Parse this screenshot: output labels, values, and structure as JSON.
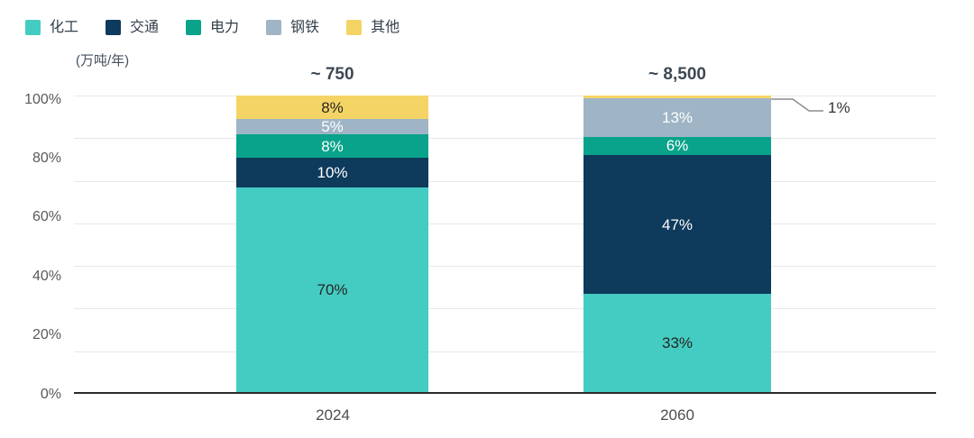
{
  "legend": {
    "items": [
      {
        "key": "chemical",
        "label": "化工",
        "color": "#44CCC2"
      },
      {
        "key": "transport",
        "label": "交通",
        "color": "#0E3A5B"
      },
      {
        "key": "power",
        "label": "电力",
        "color": "#09A38B"
      },
      {
        "key": "steel",
        "label": "钢铁",
        "color": "#9FB5C5"
      },
      {
        "key": "other",
        "label": "其他",
        "color": "#F4D464"
      }
    ]
  },
  "y_axis": {
    "unit_label": "(万吨/年)",
    "ticks": [
      {
        "label": "100%",
        "value": 100
      },
      {
        "label": "80%",
        "value": 80
      },
      {
        "label": "60%",
        "value": 60
      },
      {
        "label": "40%",
        "value": 40
      },
      {
        "label": "20%",
        "value": 20
      },
      {
        "label": "0%",
        "value": 0
      }
    ]
  },
  "x_axis": {
    "categories": [
      "2024",
      "2060"
    ]
  },
  "callout": {
    "label": "1%"
  },
  "bars": [
    {
      "category": "2024",
      "total_label": "~ 750",
      "segments": [
        {
          "key": "chemical",
          "label": "70%",
          "value": 70,
          "color": "#44CCC2",
          "text_color": "#262626"
        },
        {
          "key": "transport",
          "label": "10%",
          "value": 10,
          "color": "#0E3A5B",
          "text_color": "#FFFFFF"
        },
        {
          "key": "power",
          "label": "8%",
          "value": 8,
          "color": "#09A38B",
          "text_color": "#FFFFFF"
        },
        {
          "key": "steel",
          "label": "5%",
          "value": 5,
          "color": "#9FB5C5",
          "text_color": "#FFFFFF"
        },
        {
          "key": "other",
          "label": "8%",
          "value": 8,
          "color": "#F4D464",
          "text_color": "#262626"
        }
      ]
    },
    {
      "category": "2060",
      "total_label": "~ 8,500",
      "segments": [
        {
          "key": "chemical",
          "label": "33%",
          "value": 33,
          "color": "#44CCC2",
          "text_color": "#262626"
        },
        {
          "key": "transport",
          "label": "47%",
          "value": 47,
          "color": "#0E3A5B",
          "text_color": "#FFFFFF"
        },
        {
          "key": "power",
          "label": "6%",
          "value": 6,
          "color": "#09A38B",
          "text_color": "#FFFFFF"
        },
        {
          "key": "steel",
          "label": "13%",
          "value": 13,
          "color": "#9FB5C5",
          "text_color": "#FFFFFF"
        },
        {
          "key": "other",
          "label": "",
          "value": 1,
          "color": "#F4D464",
          "text_color": "#262626"
        }
      ]
    }
  ],
  "chart_data": {
    "type": "bar",
    "subtype": "stacked_100_percent",
    "categories": [
      "2024",
      "2060"
    ],
    "category_total_annotations": [
      "~ 750",
      "~ 8,500"
    ],
    "series": [
      {
        "name": "化工",
        "values": [
          70,
          33
        ],
        "color": "#44CCC2"
      },
      {
        "name": "交通",
        "values": [
          10,
          47
        ],
        "color": "#0E3A5B"
      },
      {
        "name": "电力",
        "values": [
          8,
          6
        ],
        "color": "#09A38B"
      },
      {
        "name": "钢铁",
        "values": [
          5,
          13
        ],
        "color": "#9FB5C5"
      },
      {
        "name": "其他",
        "values": [
          8,
          1
        ],
        "color": "#F4D464"
      }
    ],
    "title": "",
    "xlabel": "",
    "ylabel": "(万吨/年)",
    "ylim": [
      0,
      100
    ],
    "y_ticks_percent": [
      0,
      20,
      40,
      60,
      80,
      100
    ],
    "grid": true,
    "gridline_count": 8,
    "legend_position": "top-left",
    "annotations": [
      "1% callout with connector line on 2060 其他 segment"
    ]
  }
}
